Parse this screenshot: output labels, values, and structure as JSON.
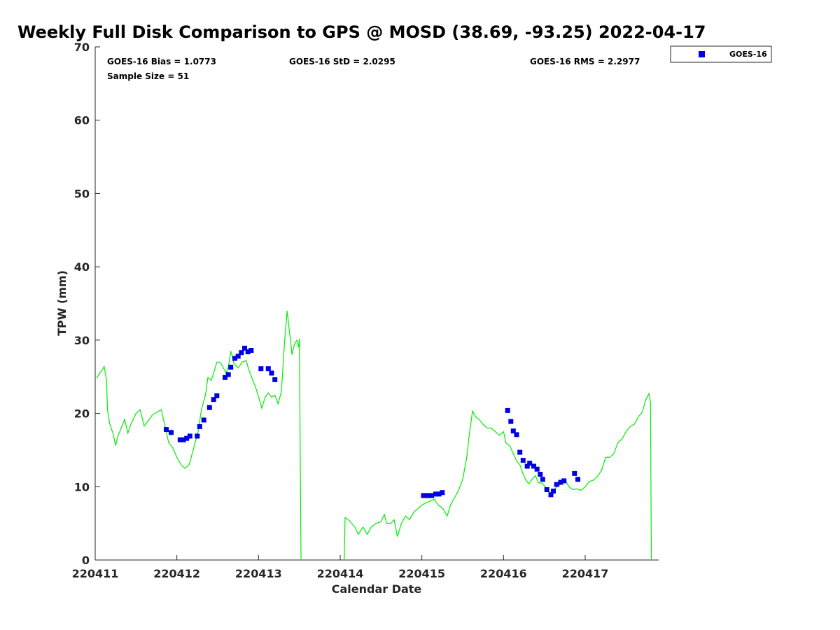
{
  "chart_data": {
    "type": "scatter",
    "title": "Weekly Full Disk Comparison to GPS @ MOSD (38.69, -93.25) 2022-04-17",
    "xlabel": "Calendar Date",
    "ylabel": "TPW (mm)",
    "xlim": [
      0,
      6.9
    ],
    "ylim": [
      0,
      70
    ],
    "x_tick_values": [
      0,
      1,
      2,
      3,
      4,
      5,
      6
    ],
    "x_tick_labels": [
      "220411",
      "220412",
      "220413",
      "220414",
      "220415",
      "220416",
      "220417"
    ],
    "y_ticks": [
      0,
      10,
      20,
      30,
      40,
      50,
      60,
      70
    ],
    "grid": false,
    "legend": "top-right",
    "stats": {
      "bias": "GOES-16 Bias = 1.0773",
      "std": "GOES-16 StD = 2.0295",
      "rms": "GOES-16 RMS = 2.2977",
      "sample": "Sample Size = 51"
    },
    "series": [
      {
        "name": "GOES-16",
        "color": "#0000e6",
        "marker": "square",
        "points": [
          [
            0.87,
            17.8
          ],
          [
            0.93,
            17.4
          ],
          [
            1.04,
            16.4
          ],
          [
            1.08,
            16.4
          ],
          [
            1.12,
            16.6
          ],
          [
            1.16,
            16.9
          ],
          [
            1.25,
            16.9
          ],
          [
            1.28,
            18.2
          ],
          [
            1.33,
            19.1
          ],
          [
            1.4,
            20.8
          ],
          [
            1.45,
            21.9
          ],
          [
            1.49,
            22.4
          ],
          [
            1.59,
            24.9
          ],
          [
            1.63,
            25.3
          ],
          [
            1.66,
            26.3
          ],
          [
            1.71,
            27.5
          ],
          [
            1.75,
            27.8
          ],
          [
            1.79,
            28.3
          ],
          [
            1.83,
            28.9
          ],
          [
            1.87,
            28.4
          ],
          [
            1.91,
            28.6
          ],
          [
            2.03,
            26.1
          ],
          [
            2.12,
            26.1
          ],
          [
            2.16,
            25.5
          ],
          [
            2.2,
            24.6
          ],
          [
            4.02,
            8.8
          ],
          [
            4.07,
            8.8
          ],
          [
            4.12,
            8.8
          ],
          [
            4.17,
            9.0
          ],
          [
            4.21,
            9.0
          ],
          [
            4.25,
            9.2
          ],
          [
            5.05,
            20.4
          ],
          [
            5.09,
            18.9
          ],
          [
            5.12,
            17.6
          ],
          [
            5.16,
            17.1
          ],
          [
            5.2,
            14.7
          ],
          [
            5.24,
            13.6
          ],
          [
            5.29,
            12.8
          ],
          [
            5.32,
            13.2
          ],
          [
            5.37,
            12.8
          ],
          [
            5.41,
            12.4
          ],
          [
            5.45,
            11.7
          ],
          [
            5.48,
            11.0
          ],
          [
            5.53,
            9.6
          ],
          [
            5.58,
            8.9
          ],
          [
            5.61,
            9.4
          ],
          [
            5.65,
            10.3
          ],
          [
            5.7,
            10.6
          ],
          [
            5.74,
            10.8
          ],
          [
            5.87,
            11.8
          ],
          [
            5.91,
            11.0
          ]
        ]
      },
      {
        "name": "",
        "color": "#00ee00",
        "points": [
          [
            0.02,
            24.8
          ],
          [
            0.05,
            25.4
          ],
          [
            0.09,
            26.0
          ],
          [
            0.11,
            26.4
          ],
          [
            0.14,
            24.5
          ],
          [
            0.15,
            20.5
          ],
          [
            0.18,
            18.5
          ],
          [
            0.22,
            17.2
          ],
          [
            0.25,
            15.6
          ],
          [
            0.28,
            17.0
          ],
          [
            0.32,
            18.0
          ],
          [
            0.36,
            19.2
          ],
          [
            0.4,
            17.3
          ],
          [
            0.44,
            18.6
          ],
          [
            0.5,
            20.0
          ],
          [
            0.55,
            20.5
          ],
          [
            0.6,
            18.3
          ],
          [
            0.65,
            19.0
          ],
          [
            0.7,
            19.8
          ],
          [
            0.76,
            20.2
          ],
          [
            0.81,
            20.5
          ],
          [
            0.84,
            19.0
          ],
          [
            0.9,
            16.0
          ],
          [
            0.95,
            15.3
          ],
          [
            1.0,
            14.0
          ],
          [
            1.05,
            13.0
          ],
          [
            1.1,
            12.5
          ],
          [
            1.15,
            13.0
          ],
          [
            1.2,
            15.0
          ],
          [
            1.26,
            17.5
          ],
          [
            1.3,
            20.5
          ],
          [
            1.35,
            22.5
          ],
          [
            1.38,
            24.9
          ],
          [
            1.42,
            24.5
          ],
          [
            1.45,
            25.5
          ],
          [
            1.49,
            27.0
          ],
          [
            1.53,
            27.0
          ],
          [
            1.57,
            26.2
          ],
          [
            1.6,
            25.5
          ],
          [
            1.63,
            26.3
          ],
          [
            1.66,
            28.5
          ],
          [
            1.7,
            26.8
          ],
          [
            1.75,
            26.2
          ],
          [
            1.8,
            27.0
          ],
          [
            1.85,
            27.2
          ],
          [
            1.88,
            26.0
          ],
          [
            1.92,
            24.8
          ],
          [
            1.96,
            23.7
          ],
          [
            2.0,
            22.3
          ],
          [
            2.04,
            20.7
          ],
          [
            2.08,
            22.2
          ],
          [
            2.12,
            22.8
          ],
          [
            2.16,
            22.2
          ],
          [
            2.2,
            22.5
          ],
          [
            2.24,
            21.3
          ],
          [
            2.28,
            23.0
          ],
          [
            2.32,
            30.0
          ],
          [
            2.35,
            34.0
          ],
          [
            2.38,
            31.0
          ],
          [
            2.41,
            28.0
          ],
          [
            2.44,
            29.5
          ],
          [
            2.47,
            30.0
          ],
          [
            2.49,
            29.0
          ],
          [
            2.5,
            30.2
          ],
          [
            2.52,
            0.0
          ],
          null,
          [
            3.05,
            0.0
          ],
          [
            3.06,
            5.8
          ],
          [
            3.1,
            5.5
          ],
          [
            3.14,
            5.0
          ],
          [
            3.18,
            4.5
          ],
          [
            3.22,
            3.5
          ],
          [
            3.28,
            4.5
          ],
          [
            3.33,
            3.5
          ],
          [
            3.38,
            4.5
          ],
          [
            3.44,
            5.0
          ],
          [
            3.5,
            5.2
          ],
          [
            3.54,
            6.2
          ],
          [
            3.57,
            5.0
          ],
          [
            3.62,
            5.0
          ],
          [
            3.66,
            5.5
          ],
          [
            3.7,
            3.2
          ],
          [
            3.75,
            5.0
          ],
          [
            3.8,
            6.0
          ],
          [
            3.85,
            5.5
          ],
          [
            3.9,
            6.5
          ],
          [
            3.95,
            7.0
          ],
          [
            4.0,
            7.5
          ],
          [
            4.05,
            7.8
          ],
          [
            4.1,
            8.0
          ],
          [
            4.15,
            8.3
          ],
          [
            4.2,
            7.5
          ],
          [
            4.26,
            7.0
          ],
          [
            4.31,
            6.0
          ],
          [
            4.35,
            7.5
          ],
          [
            4.4,
            8.5
          ],
          [
            4.45,
            9.5
          ],
          [
            4.5,
            11.0
          ],
          [
            4.55,
            14.0
          ],
          [
            4.58,
            17.0
          ],
          [
            4.62,
            20.3
          ],
          [
            4.66,
            19.5
          ],
          [
            4.7,
            19.2
          ],
          [
            4.75,
            18.5
          ],
          [
            4.8,
            18.0
          ],
          [
            4.85,
            18.0
          ],
          [
            4.9,
            17.5
          ],
          [
            4.95,
            17.0
          ],
          [
            5.0,
            17.5
          ],
          [
            5.03,
            16.0
          ],
          [
            5.08,
            15.5
          ],
          [
            5.12,
            14.5
          ],
          [
            5.16,
            13.5
          ],
          [
            5.2,
            13.0
          ],
          [
            5.23,
            12.0
          ],
          [
            5.27,
            11.0
          ],
          [
            5.31,
            10.4
          ],
          [
            5.35,
            11.0
          ],
          [
            5.39,
            11.5
          ],
          [
            5.43,
            10.5
          ],
          [
            5.47,
            10.5
          ],
          [
            5.51,
            10.0
          ],
          [
            5.55,
            9.5
          ],
          [
            5.58,
            9.0
          ],
          [
            5.62,
            9.5
          ],
          [
            5.65,
            10.0
          ],
          [
            5.7,
            10.3
          ],
          [
            5.75,
            11.0
          ],
          [
            5.8,
            10.0
          ],
          [
            5.85,
            9.6
          ],
          [
            5.9,
            9.7
          ],
          [
            5.95,
            9.5
          ],
          [
            6.0,
            10.0
          ],
          [
            6.05,
            10.7
          ],
          [
            6.1,
            10.9
          ],
          [
            6.15,
            11.4
          ],
          [
            6.2,
            12.2
          ],
          [
            6.25,
            14.0
          ],
          [
            6.3,
            14.0
          ],
          [
            6.35,
            14.5
          ],
          [
            6.4,
            16.0
          ],
          [
            6.45,
            16.5
          ],
          [
            6.5,
            17.5
          ],
          [
            6.55,
            18.2
          ],
          [
            6.6,
            18.5
          ],
          [
            6.65,
            19.5
          ],
          [
            6.7,
            20.2
          ],
          [
            6.74,
            21.8
          ],
          [
            6.78,
            22.7
          ],
          [
            6.8,
            21.5
          ],
          [
            6.81,
            0.0
          ]
        ]
      }
    ]
  }
}
